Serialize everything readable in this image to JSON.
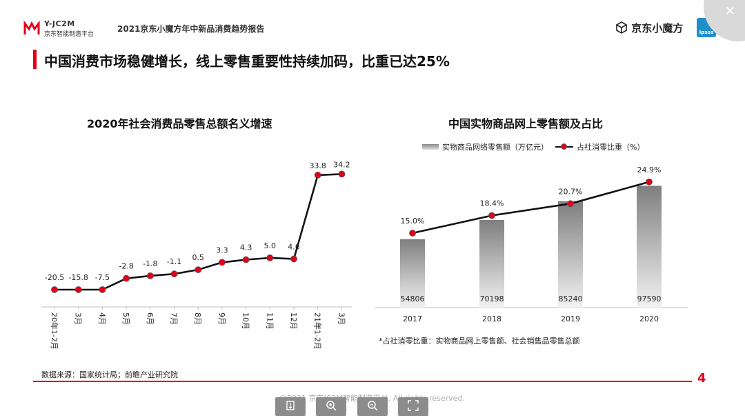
{
  "header": {
    "logo_line1": "Y-JC2M",
    "logo_line2": "京东智能制造平台",
    "report_title": "2021京东小魔方年中新品消费趋势报告",
    "jd_brand": "京东小魔方",
    "ipsos_label": "Ipsos"
  },
  "main_title": "中国消费市场稳健增长，线上零售重要性持续加码，比重已达25%",
  "chart_data": [
    {
      "type": "line",
      "title": "2020年社会消费品零售总额名义增速",
      "categories": [
        "20年1-2月",
        "3月",
        "4月",
        "5月",
        "6月",
        "7月",
        "8月",
        "9月",
        "10月",
        "11月",
        "12月",
        "21年1-2月",
        "3月"
      ],
      "values": [
        -20.5,
        -15.8,
        -7.5,
        -2.8,
        -1.8,
        -1.1,
        0.5,
        3.3,
        4.3,
        5.0,
        4.6,
        33.8,
        34.2
      ],
      "value_labels": [
        "-20.5",
        "-15.8",
        "-7.5",
        "-2.8",
        "-1.8",
        "-1.1",
        "0.5",
        "3.3",
        "4.3",
        "5.0",
        "4.6",
        "33.8",
        "34.2"
      ],
      "colors": {
        "line": "#111111",
        "marker": "#e3001b"
      }
    },
    {
      "type": "bar",
      "title": "中国实物商品网上零售额及占比",
      "categories": [
        "2017",
        "2018",
        "2019",
        "2020"
      ],
      "series": [
        {
          "name": "实物商品网络零售额（万亿元）",
          "values": [
            54806,
            70198,
            85240,
            97590
          ],
          "labels": [
            "54806",
            "70198",
            "85240",
            "97590"
          ]
        },
        {
          "name": "占社消零比重（%）",
          "values": [
            15.0,
            18.4,
            20.7,
            24.9
          ],
          "labels": [
            "15.0%",
            "18.4%",
            "20.7%",
            "24.9%"
          ]
        }
      ],
      "note": "*占社消零比重：实物商品网上零售额、社会销售品零售总额",
      "colors": {
        "bar_top": "#7f7f7f",
        "bar_bottom": "#f2f2f2",
        "line": "#111111",
        "marker": "#e3001b"
      }
    }
  ],
  "footer": {
    "source": "数据来源：国家统计局；前瞻产业研究院",
    "page_number": "4",
    "copyright": "@2021 京东JC2M智能制造平台. All rights reserved."
  },
  "toolbar": {
    "icons": [
      "fit-page-icon",
      "zoom-in-icon",
      "zoom-out-icon",
      "fullscreen-icon"
    ]
  }
}
